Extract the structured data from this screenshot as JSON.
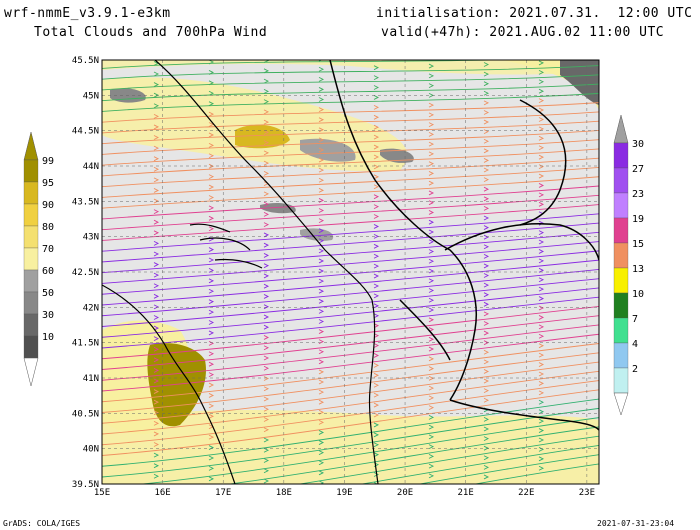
{
  "header": {
    "model": "wrf-nmmE_v3.9.1-e3km",
    "title": "Total Clouds and 700hPa Wind",
    "init": "initialisation: 2021.07.31.  12:00 UTC",
    "valid": "valid(+47h): 2021.AUG.02 11:00 UTC"
  },
  "footer": {
    "left": "GrADS: COLA/IGES",
    "right": "2021-07-31-23:04"
  },
  "map": {
    "lat_labels": [
      "45.5N",
      "45N",
      "44.5N",
      "44N",
      "43.5N",
      "43N",
      "42.5N",
      "42N",
      "41.5N",
      "41N",
      "40.5N",
      "40N",
      "39.5N"
    ],
    "lon_labels": [
      "15E",
      "16E",
      "17E",
      "18E",
      "19E",
      "20E",
      "21E",
      "22E",
      "23E"
    ],
    "lat_range": [
      39.5,
      45.5
    ],
    "lon_range": [
      15,
      23.2
    ]
  },
  "cloud_scale": {
    "labels": [
      "99",
      "95",
      "90",
      "80",
      "70",
      "60",
      "50",
      "30",
      "10"
    ],
    "colors": [
      "#a09000",
      "#d8b820",
      "#f0d040",
      "#f4e070",
      "#f8f0a0",
      "#a0a0a0",
      "#888888",
      "#686868",
      "#505050"
    ]
  },
  "wind_scale": {
    "labels": [
      "30",
      "27",
      "23",
      "19",
      "15",
      "13",
      "10",
      "7",
      "4",
      "2"
    ],
    "colors": [
      "#8a2be2",
      "#a050f0",
      "#c080ff",
      "#e04090",
      "#f09060",
      "#f8f000",
      "#208020",
      "#40e090",
      "#90c8f0",
      "#c0f0f0"
    ]
  }
}
